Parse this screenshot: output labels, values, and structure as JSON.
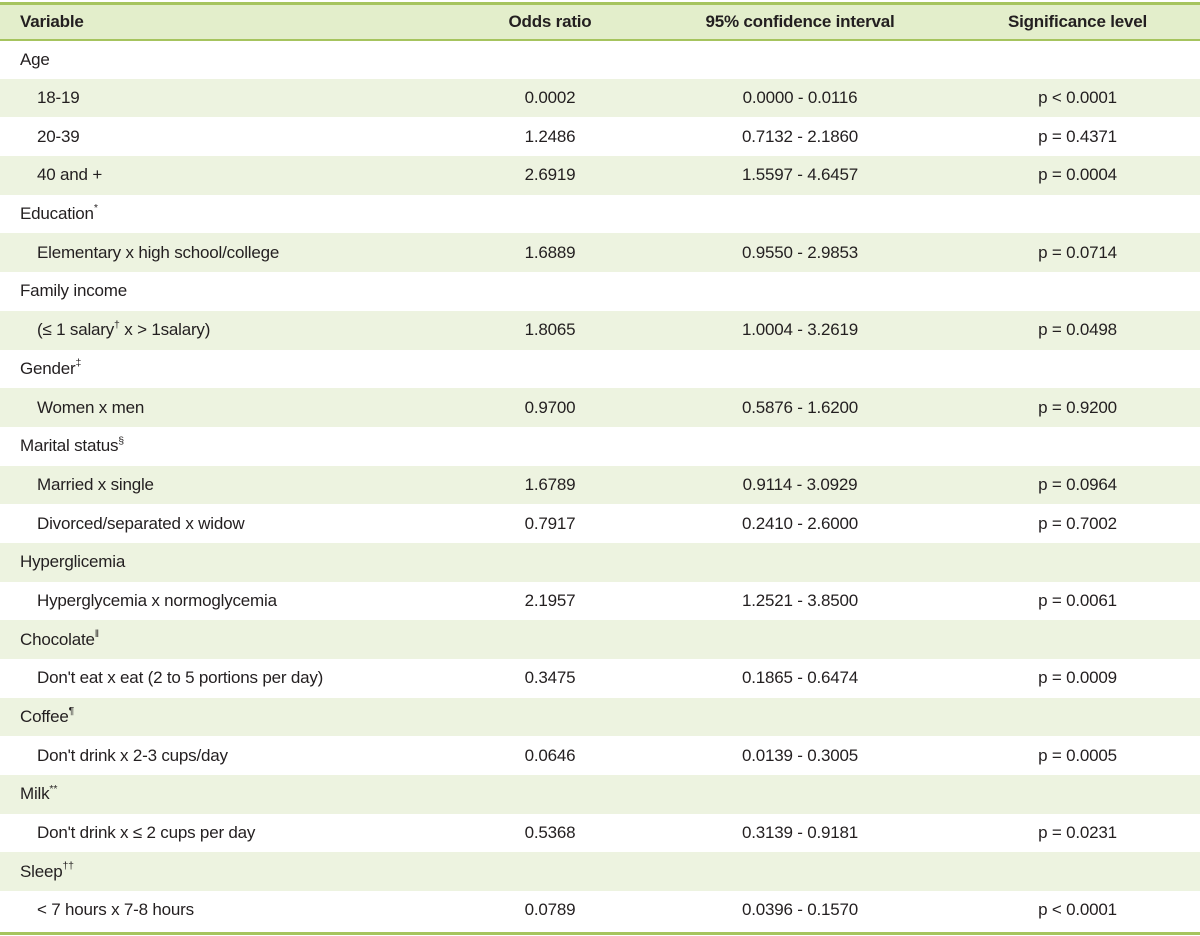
{
  "table": {
    "header": {
      "variable": "Variable",
      "odds_ratio": "Odds ratio",
      "confidence_interval": "95% confidence interval",
      "significance": "Significance level"
    },
    "rows": [
      {
        "kind": "category",
        "parts": [
          {
            "t": "Age"
          }
        ]
      },
      {
        "kind": "data",
        "parts": [
          {
            "t": "18-19"
          }
        ],
        "odds": "0.0002",
        "ci": "0.0000 - 0.0116",
        "sig": "p < 0.0001"
      },
      {
        "kind": "data",
        "parts": [
          {
            "t": "20-39"
          }
        ],
        "odds": "1.2486",
        "ci": "0.7132 - 2.1860",
        "sig": "p = 0.4371"
      },
      {
        "kind": "data",
        "parts": [
          {
            "t": "40 and +"
          }
        ],
        "odds": "2.6919",
        "ci": "1.5597 - 4.6457",
        "sig": "p = 0.0004"
      },
      {
        "kind": "category",
        "parts": [
          {
            "t": "Education"
          },
          {
            "t": "*",
            "sup": true
          }
        ]
      },
      {
        "kind": "data",
        "parts": [
          {
            "t": "Elementary x high school/college"
          }
        ],
        "odds": "1.6889",
        "ci": "0.9550 - 2.9853",
        "sig": "p = 0.0714"
      },
      {
        "kind": "category",
        "parts": [
          {
            "t": "Family income"
          }
        ]
      },
      {
        "kind": "data",
        "parts": [
          {
            "t": "(≤ 1 salary"
          },
          {
            "t": "†",
            "sup": true
          },
          {
            "t": " x > 1salary)"
          }
        ],
        "odds": "1.8065",
        "ci": "1.0004 - 3.2619",
        "sig": "p = 0.0498"
      },
      {
        "kind": "category",
        "parts": [
          {
            "t": "Gender"
          },
          {
            "t": "‡",
            "sup": true
          }
        ]
      },
      {
        "kind": "data",
        "parts": [
          {
            "t": "Women x men"
          }
        ],
        "odds": "0.9700",
        "ci": "0.5876 - 1.6200",
        "sig": "p = 0.9200"
      },
      {
        "kind": "category",
        "parts": [
          {
            "t": "Marital status"
          },
          {
            "t": "§",
            "sup": true
          }
        ]
      },
      {
        "kind": "data",
        "parts": [
          {
            "t": "Married x single"
          }
        ],
        "odds": "1.6789",
        "ci": "0.9114 - 3.0929",
        "sig": "p = 0.0964"
      },
      {
        "kind": "data",
        "parts": [
          {
            "t": "Divorced/separated x widow"
          }
        ],
        "odds": "0.7917",
        "ci": "0.2410 - 2.6000",
        "sig": "p = 0.7002"
      },
      {
        "kind": "category",
        "parts": [
          {
            "t": "Hyperglicemia"
          }
        ]
      },
      {
        "kind": "data",
        "parts": [
          {
            "t": "Hyperglycemia x normoglycemia"
          }
        ],
        "odds": "2.1957",
        "ci": "1.2521 - 3.8500",
        "sig": "p = 0.0061"
      },
      {
        "kind": "category",
        "parts": [
          {
            "t": "Chocolate"
          },
          {
            "t": "‖",
            "sup": true
          }
        ]
      },
      {
        "kind": "data",
        "parts": [
          {
            "t": "Don't eat x eat (2 to 5 portions per day)"
          }
        ],
        "odds": "0.3475",
        "ci": "0.1865 - 0.6474",
        "sig": "p = 0.0009"
      },
      {
        "kind": "category",
        "parts": [
          {
            "t": "Coffee"
          },
          {
            "t": "¶",
            "sup": true
          }
        ]
      },
      {
        "kind": "data",
        "parts": [
          {
            "t": "Don't drink x 2-3 cups/day"
          }
        ],
        "odds": "0.0646",
        "ci": "0.0139 - 0.3005",
        "sig": "p = 0.0005"
      },
      {
        "kind": "category",
        "parts": [
          {
            "t": "Milk"
          },
          {
            "t": "**",
            "sup": true
          }
        ]
      },
      {
        "kind": "data",
        "parts": [
          {
            "t": "Don't drink x ≤ 2 cups per day"
          }
        ],
        "odds": "0.5368",
        "ci": "0.3139 - 0.9181",
        "sig": "p = 0.0231"
      },
      {
        "kind": "category",
        "parts": [
          {
            "t": "Sleep"
          },
          {
            "t": "††",
            "sup": true
          }
        ]
      },
      {
        "kind": "data",
        "parts": [
          {
            "t": "< 7 hours x 7-8 hours"
          }
        ],
        "odds": "0.0789",
        "ci": "0.0396 - 0.1570",
        "sig": "p < 0.0001"
      }
    ]
  },
  "colors": {
    "border_green": "#a6c45e",
    "header_bg": "#e3eecb",
    "stripe_bg": "#edf3e0",
    "text": "#231f20"
  }
}
